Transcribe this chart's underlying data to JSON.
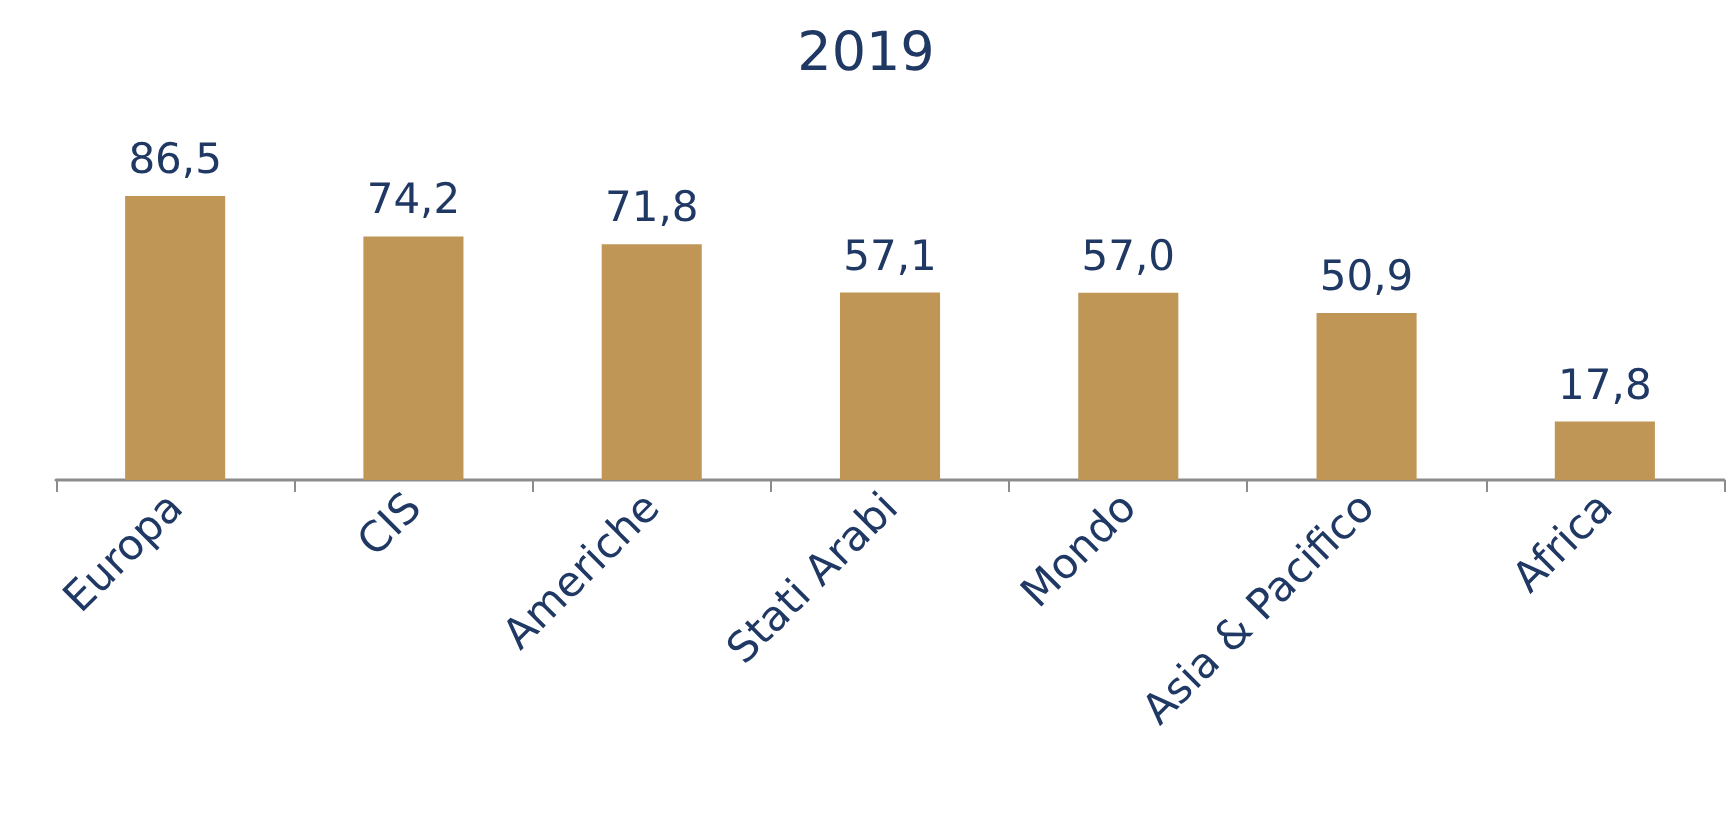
{
  "chart_data": {
    "type": "bar",
    "title": "2019",
    "categories": [
      "Europa",
      "CIS",
      "Americhe",
      "Stati Arabi",
      "Mondo",
      "Asia & Pacifico",
      "Africa"
    ],
    "values": [
      86.5,
      74.2,
      71.8,
      57.1,
      57.0,
      50.9,
      17.8
    ],
    "value_labels": [
      "86,5",
      "74,2",
      "71,8",
      "57,1",
      "57,0",
      "50,9",
      "17,8"
    ],
    "color": "#bf9656"
  }
}
